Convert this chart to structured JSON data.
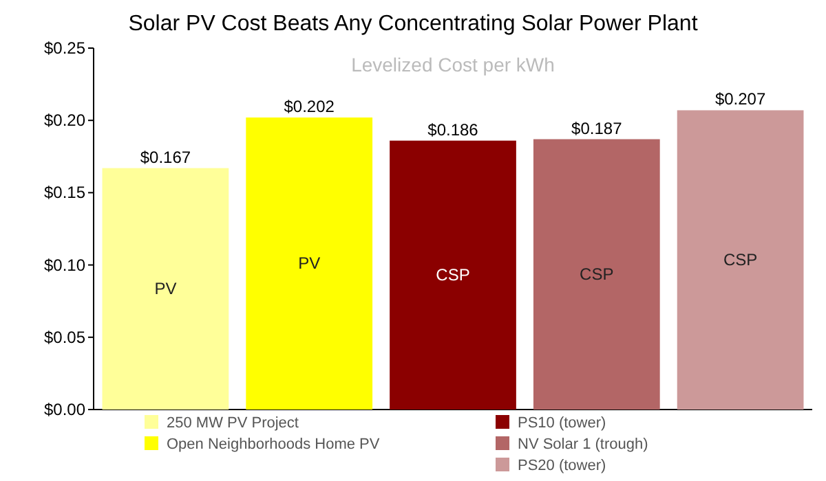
{
  "chart_data": {
    "type": "bar",
    "title": "Solar PV Cost Beats Any Concentrating Solar Power Plant",
    "subtitle": "Levelized Cost per kWh",
    "categories": [
      null,
      null,
      null,
      null,
      null
    ],
    "series": [
      {
        "name": "250 MW PV Project",
        "color": "#ffff99",
        "values": [
          0.167,
          null,
          null,
          null,
          null
        ],
        "value_labels": [
          "$0.167",
          null,
          null,
          null,
          null
        ]
      },
      {
        "name": "Open Neighborhoods Home PV",
        "color": "#ffff00",
        "values": [
          null,
          0.202,
          null,
          null,
          null
        ],
        "value_labels": [
          null,
          "$0.202",
          null,
          null,
          null
        ]
      },
      {
        "name": "PS10 (tower)",
        "color": "#8b0000",
        "values": [
          null,
          null,
          0.186,
          null,
          null
        ],
        "value_labels": [
          null,
          null,
          "$0.186",
          null,
          null
        ]
      },
      {
        "name": "NV Solar 1 (trough)",
        "color": "#b36666",
        "values": [
          null,
          null,
          null,
          0.187,
          null
        ],
        "value_labels": [
          null,
          null,
          null,
          "$0.187",
          null
        ]
      },
      {
        "name": "PS20 (tower)",
        "color": "#cc9999",
        "values": [
          null,
          null,
          null,
          null,
          0.207
        ],
        "value_labels": [
          null,
          null,
          null,
          null,
          "$0.207"
        ]
      }
    ],
    "annotations": [
      "PV",
      "PV",
      "CSP",
      "CSP",
      "CSP"
    ],
    "ylim": [
      0,
      0.25
    ],
    "yticks": [
      {
        "value": 0,
        "label": "$0.00"
      },
      {
        "value": 0.05,
        "label": "$0.05"
      },
      {
        "value": 0.1,
        "label": "$0.10"
      },
      {
        "value": 0.15,
        "label": "$0.15"
      },
      {
        "value": 0.2,
        "label": "$0.20"
      },
      {
        "value": 0.25,
        "label": "$0.25"
      }
    ],
    "legend": "bottom",
    "grid": false
  }
}
